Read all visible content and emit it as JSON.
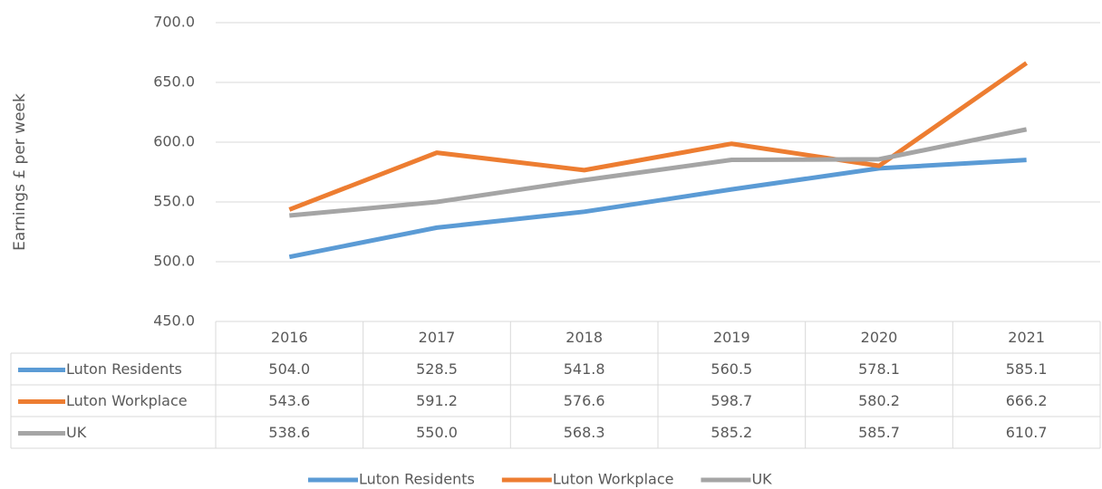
{
  "chart_data": {
    "type": "line",
    "y_label": "Earnings £ per week",
    "categories": [
      "2016",
      "2017",
      "2018",
      "2019",
      "2020",
      "2021"
    ],
    "series": [
      {
        "name": "Luton Residents",
        "color": "#5b9bd5",
        "values": [
          504.0,
          528.5,
          541.8,
          560.5,
          578.1,
          585.1
        ],
        "value_labels": [
          "504.0",
          "528.5",
          "541.8",
          "560.5",
          "578.1",
          "585.1"
        ]
      },
      {
        "name": "Luton Workplace",
        "color": "#ed7d31",
        "values": [
          543.6,
          591.2,
          576.6,
          598.7,
          580.2,
          666.2
        ],
        "value_labels": [
          "543.6",
          "591.2",
          "576.6",
          "598.7",
          "580.2",
          "666.2"
        ]
      },
      {
        "name": "UK",
        "color": "#a5a5a5",
        "values": [
          538.6,
          550.0,
          568.3,
          585.2,
          585.7,
          610.7
        ],
        "value_labels": [
          "538.6",
          "550.0",
          "568.3",
          "585.2",
          "585.7",
          "610.7"
        ]
      }
    ],
    "ylim": [
      450,
      700
    ],
    "yticks": [
      {
        "value": 450,
        "label": "450.0"
      },
      {
        "value": 500,
        "label": "500.0"
      },
      {
        "value": 550,
        "label": "550.0"
      },
      {
        "value": 600,
        "label": "600.0"
      },
      {
        "value": 650,
        "label": "650.0"
      },
      {
        "value": 700,
        "label": "700.0"
      }
    ],
    "grid": true,
    "legend": "bottom"
  }
}
